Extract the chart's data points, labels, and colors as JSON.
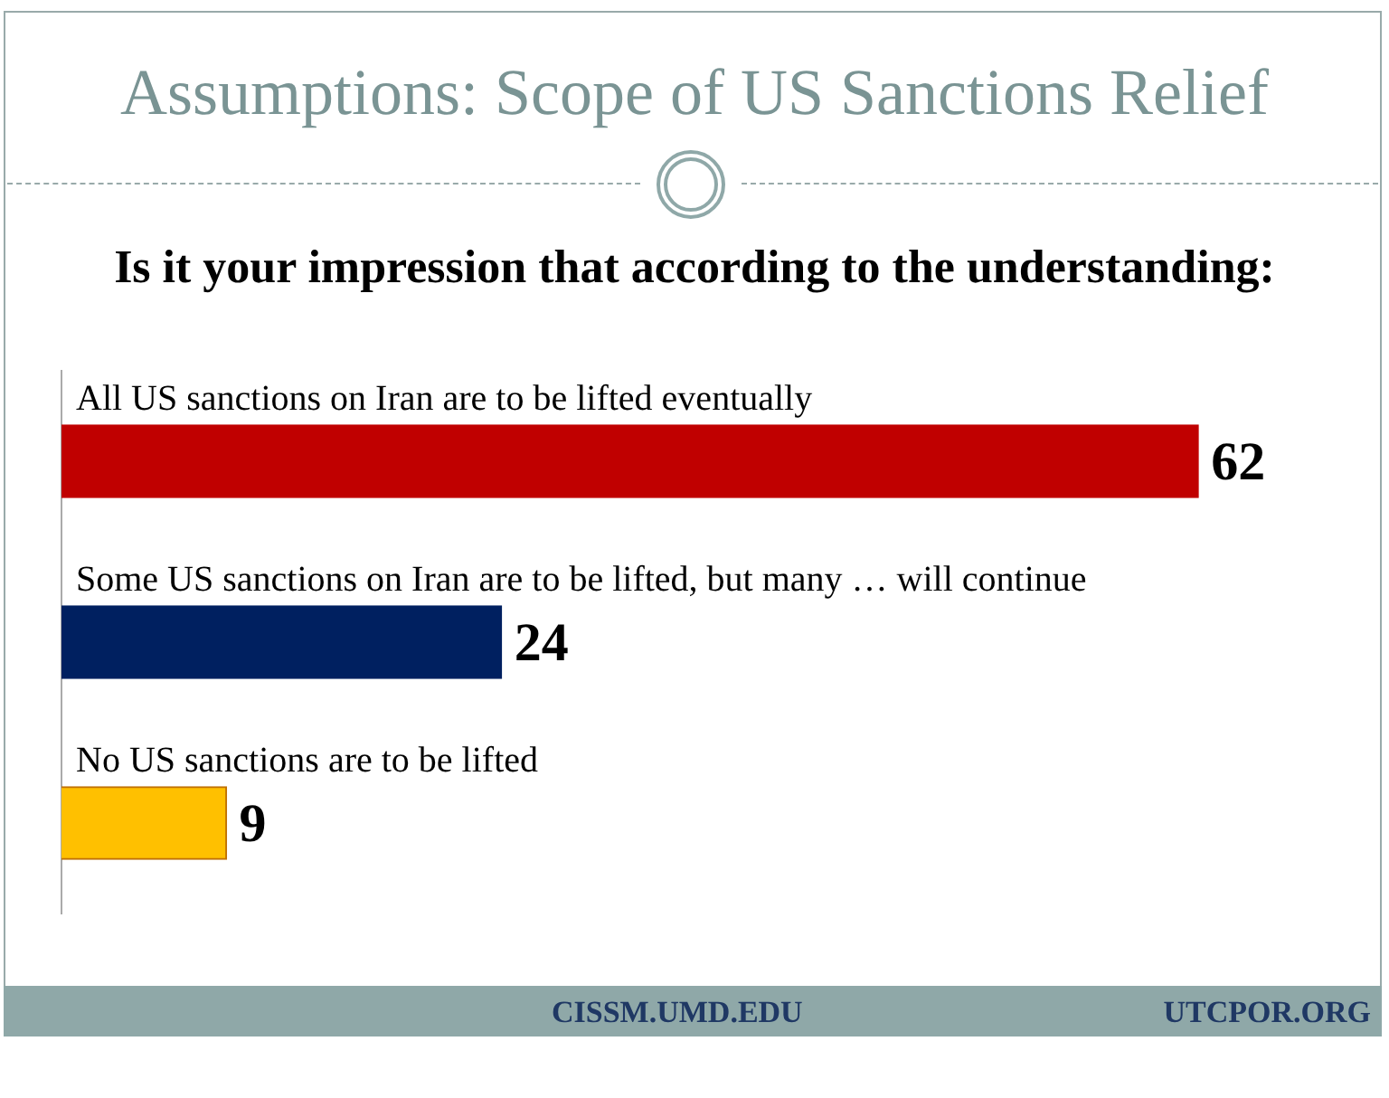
{
  "chart_data": {
    "type": "bar",
    "orientation": "horizontal",
    "title": "Assumptions: Scope of US Sanctions Relief",
    "subtitle": "Is it your impression that according to the understanding:",
    "categories": [
      "All US sanctions on Iran are to be lifted eventually",
      "Some US sanctions on Iran are to be lifted, but many … will continue",
      "No US sanctions are to be lifted"
    ],
    "values": [
      62,
      24,
      9
    ],
    "colors": [
      "#c00000",
      "#002060",
      "#ffc000"
    ],
    "data_labels": true,
    "annotations": [
      "CISSM.UMD.EDU",
      "UTCPOR.ORG"
    ]
  }
}
